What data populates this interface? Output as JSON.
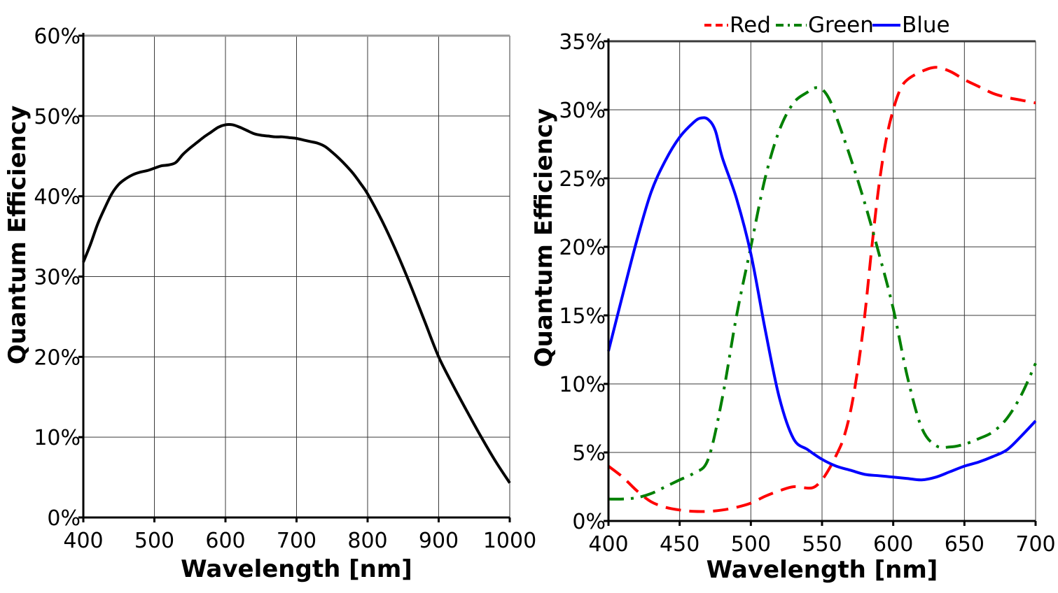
{
  "chart_data": [
    {
      "type": "line",
      "title": "",
      "xlabel": "Wavelength [nm]",
      "ylabel": "Quantum Efficiency",
      "xlim": [
        400,
        1000
      ],
      "ylim": [
        0,
        0.6
      ],
      "xticks": [
        400,
        500,
        600,
        700,
        800,
        900,
        1000
      ],
      "xtick_labels": [
        "400",
        "500",
        "600",
        "700",
        "800",
        "900",
        "1000"
      ],
      "yticks": [
        0,
        0.1,
        0.2,
        0.3,
        0.4,
        0.5,
        0.6
      ],
      "ytick_labels": [
        "0%",
        "10%",
        "20%",
        "30%",
        "40%",
        "50%",
        "60%"
      ],
      "grid": true,
      "legend": "none",
      "series": [
        {
          "color": "#000000",
          "dash": "solid",
          "x": [
            400,
            410,
            420,
            430,
            440,
            450,
            460,
            470,
            480,
            490,
            500,
            510,
            520,
            530,
            540,
            550,
            560,
            570,
            580,
            590,
            600,
            610,
            620,
            630,
            640,
            650,
            660,
            670,
            680,
            690,
            700,
            710,
            720,
            730,
            740,
            750,
            760,
            770,
            780,
            790,
            800,
            820,
            840,
            860,
            880,
            900,
            920,
            940,
            960,
            980,
            1000
          ],
          "y": [
            0.318,
            0.34,
            0.365,
            0.385,
            0.403,
            0.415,
            0.422,
            0.427,
            0.43,
            0.432,
            0.435,
            0.438,
            0.439,
            0.442,
            0.452,
            0.46,
            0.467,
            0.474,
            0.48,
            0.486,
            0.489,
            0.489,
            0.486,
            0.482,
            0.478,
            0.476,
            0.475,
            0.474,
            0.474,
            0.473,
            0.472,
            0.47,
            0.468,
            0.466,
            0.462,
            0.455,
            0.447,
            0.438,
            0.428,
            0.416,
            0.403,
            0.37,
            0.332,
            0.29,
            0.245,
            0.2,
            0.165,
            0.132,
            0.1,
            0.07,
            0.043
          ]
        }
      ]
    },
    {
      "type": "line",
      "title": "",
      "xlabel": "Wavelength [nm]",
      "ylabel": "Quantum Efficiency",
      "xlim": [
        400,
        700
      ],
      "ylim": [
        0,
        0.35
      ],
      "xticks": [
        400,
        450,
        500,
        550,
        600,
        650,
        700
      ],
      "xtick_labels": [
        "400",
        "450",
        "500",
        "550",
        "600",
        "650",
        "700"
      ],
      "yticks": [
        0,
        0.05,
        0.1,
        0.15,
        0.2,
        0.25,
        0.3,
        0.35
      ],
      "ytick_labels": [
        "0%",
        "5%",
        "10%",
        "15%",
        "20%",
        "25%",
        "30%",
        "35%"
      ],
      "grid": true,
      "legend": "top",
      "series": [
        {
          "name": "Red",
          "color": "#ff0000",
          "dash": "dashed",
          "x": [
            400,
            410,
            420,
            430,
            440,
            450,
            460,
            470,
            480,
            490,
            500,
            510,
            520,
            530,
            540,
            545,
            550,
            555,
            560,
            565,
            570,
            575,
            580,
            585,
            590,
            595,
            600,
            605,
            610,
            620,
            630,
            640,
            650,
            660,
            670,
            680,
            690,
            700
          ],
          "y": [
            0.04,
            0.032,
            0.022,
            0.014,
            0.01,
            0.008,
            0.007,
            0.007,
            0.008,
            0.01,
            0.013,
            0.018,
            0.022,
            0.025,
            0.024,
            0.025,
            0.03,
            0.038,
            0.048,
            0.06,
            0.08,
            0.11,
            0.15,
            0.2,
            0.245,
            0.278,
            0.3,
            0.315,
            0.322,
            0.328,
            0.331,
            0.328,
            0.322,
            0.317,
            0.312,
            0.309,
            0.307,
            0.305
          ]
        },
        {
          "name": "Green",
          "color": "#008000",
          "dash": "dashdot",
          "x": [
            400,
            410,
            420,
            430,
            440,
            450,
            460,
            470,
            480,
            490,
            500,
            510,
            520,
            530,
            540,
            545,
            550,
            555,
            560,
            570,
            580,
            590,
            600,
            610,
            620,
            630,
            640,
            650,
            660,
            670,
            680,
            690,
            700
          ],
          "y": [
            0.016,
            0.016,
            0.017,
            0.02,
            0.025,
            0.03,
            0.035,
            0.045,
            0.09,
            0.15,
            0.2,
            0.25,
            0.285,
            0.305,
            0.313,
            0.316,
            0.315,
            0.308,
            0.295,
            0.265,
            0.232,
            0.195,
            0.155,
            0.105,
            0.068,
            0.055,
            0.054,
            0.056,
            0.06,
            0.065,
            0.075,
            0.092,
            0.115
          ]
        },
        {
          "name": "Blue",
          "color": "#0000ff",
          "dash": "solid",
          "x": [
            400,
            410,
            420,
            430,
            440,
            450,
            460,
            465,
            470,
            475,
            480,
            490,
            500,
            510,
            520,
            530,
            540,
            550,
            560,
            570,
            580,
            590,
            600,
            610,
            620,
            630,
            640,
            650,
            660,
            670,
            680,
            690,
            700
          ],
          "y": [
            0.124,
            0.165,
            0.205,
            0.24,
            0.263,
            0.28,
            0.291,
            0.294,
            0.293,
            0.285,
            0.265,
            0.235,
            0.195,
            0.14,
            0.09,
            0.06,
            0.052,
            0.045,
            0.04,
            0.037,
            0.034,
            0.033,
            0.032,
            0.031,
            0.03,
            0.032,
            0.036,
            0.04,
            0.043,
            0.047,
            0.052,
            0.062,
            0.073
          ]
        }
      ]
    }
  ]
}
